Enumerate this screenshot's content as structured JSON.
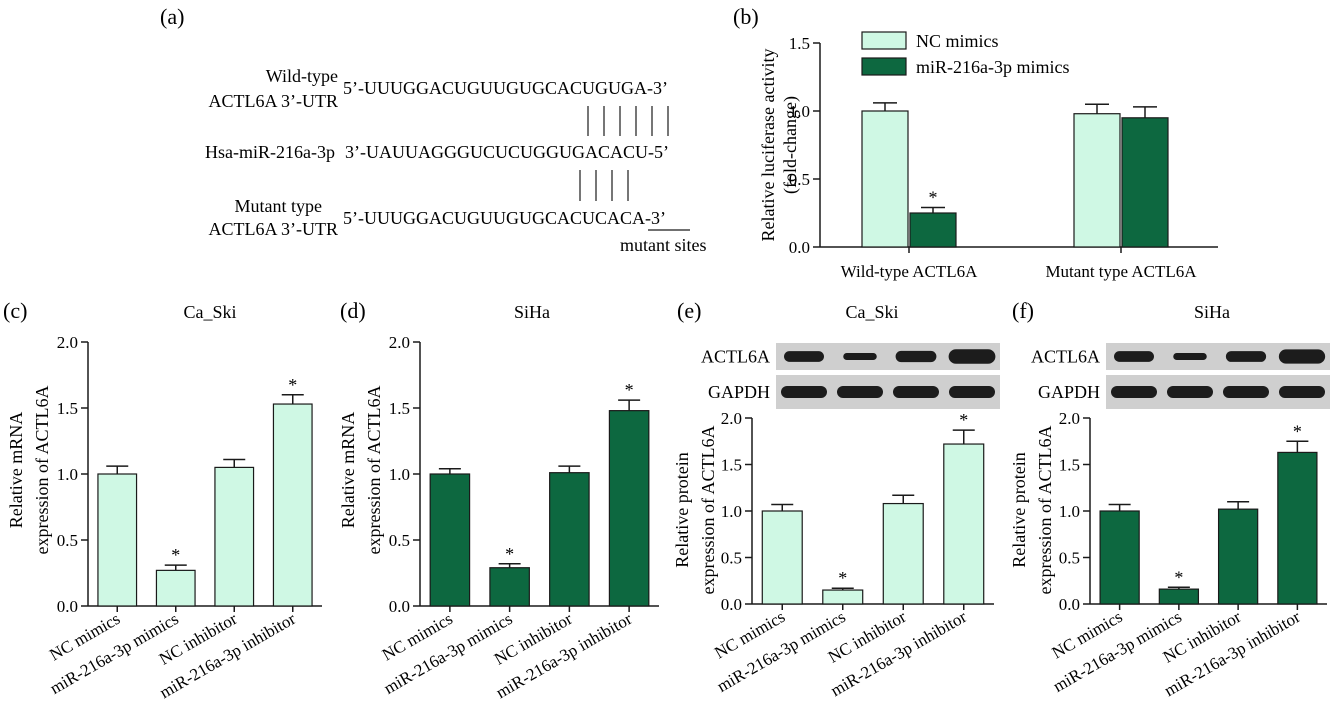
{
  "colors": {
    "light": "#cff8e4",
    "dark": "#0d6840",
    "stroke": "#1a1a1a",
    "blot_bg": "#cfcfcf",
    "blot_band": "#1c1c1c"
  },
  "panel_a": {
    "letter": "(a)",
    "wt_label_1": "Wild-type",
    "wt_label_2": "ACTL6A 3’-UTR",
    "wt_seq": "5’-UUUGGACUGUUGUGCACUGUGA-3’",
    "mir_label": "Hsa-miR-216a-3p",
    "mir_seq": "3’-UAUUAGGGUCUCUGGUGACACU-5’",
    "mut_label_1": "Mutant type",
    "mut_label_2": "ACTL6A 3’-UTR",
    "mut_seq": "5’-UUUGGACUGUUGUGCACUCACA-3’",
    "mutant_sites": "mutant sites"
  },
  "chart_data": [
    {
      "panel": "(b)",
      "type": "bar",
      "title": "",
      "ylabel": "Relative luciferase activity (fold-change)",
      "ylabel_lines": [
        "Relative luciferase activity",
        "(fold-change)"
      ],
      "ylim": [
        0,
        1.5
      ],
      "yticks": [
        "0.0",
        "0.5",
        "1.0",
        "1.5"
      ],
      "categories": [
        "Wild-type ACTL6A",
        "Mutant type ACTL6A"
      ],
      "series": [
        {
          "name": "NC mimics",
          "values": [
            1.0,
            0.98
          ],
          "errors": [
            0.06,
            0.07
          ],
          "sig": [
            false,
            false
          ]
        },
        {
          "name": "miR-216a-3p mimics",
          "values": [
            0.25,
            0.95
          ],
          "errors": [
            0.04,
            0.08
          ],
          "sig": [
            true,
            false
          ]
        }
      ],
      "legend": "top-right",
      "sig_mark": "*"
    },
    {
      "panel": "(c)",
      "type": "bar",
      "title": "Ca_Ski",
      "ylabel": "Relative mRNA expression of ACTL6A",
      "ylabel_lines": [
        "Relative mRNA",
        "expression of ACTL6A"
      ],
      "ylim": [
        0,
        2.0
      ],
      "yticks": [
        "0.0",
        "0.5",
        "1.0",
        "1.5",
        "2.0"
      ],
      "categories": [
        "NC mimics",
        "miR-216a-3p mimics",
        "NC inhibitor",
        "miR-216a-3p inhibitor"
      ],
      "values": [
        1.0,
        0.27,
        1.05,
        1.53
      ],
      "errors": [
        0.06,
        0.04,
        0.06,
        0.07
      ],
      "sig": [
        false,
        true,
        false,
        true
      ],
      "sig_mark": "*",
      "fill": "light"
    },
    {
      "panel": "(d)",
      "type": "bar",
      "title": "SiHa",
      "ylabel": "Relative mRNA expression of ACTL6A",
      "ylabel_lines": [
        "Relative mRNA",
        "expression of ACTL6A"
      ],
      "ylim": [
        0,
        2.0
      ],
      "yticks": [
        "0.0",
        "0.5",
        "1.0",
        "1.5",
        "2.0"
      ],
      "categories": [
        "NC mimics",
        "miR-216a-3p mimics",
        "NC inhibitor",
        "miR-216a-3p inhibitor"
      ],
      "values": [
        1.0,
        0.29,
        1.01,
        1.48
      ],
      "errors": [
        0.04,
        0.03,
        0.05,
        0.08
      ],
      "sig": [
        false,
        true,
        false,
        true
      ],
      "sig_mark": "*",
      "fill": "dark"
    },
    {
      "panel": "(e)",
      "type": "bar",
      "title": "Ca_Ski",
      "ylabel": "Relative protein expression of ACTL6A",
      "ylabel_lines": [
        "Relative protein",
        "expression of ACTL6A"
      ],
      "ylim": [
        0,
        2.0
      ],
      "yticks": [
        "0.0",
        "0.5",
        "1.0",
        "1.5",
        "2.0"
      ],
      "categories": [
        "NC mimics",
        "miR-216a-3p mimics",
        "NC inhibitor",
        "miR-216a-3p inhibitor"
      ],
      "values": [
        1.0,
        0.15,
        1.08,
        1.72
      ],
      "errors": [
        0.07,
        0.02,
        0.09,
        0.15
      ],
      "sig": [
        false,
        true,
        false,
        true
      ],
      "sig_mark": "*",
      "fill": "light",
      "blot_labels": [
        "ACTL6A",
        "GAPDH"
      ]
    },
    {
      "panel": "(f)",
      "type": "bar",
      "title": "SiHa",
      "ylabel": "Relative protein expression of ACTL6A",
      "ylabel_lines": [
        "Relative protein",
        "expression of ACTL6A"
      ],
      "ylim": [
        0,
        2.0
      ],
      "yticks": [
        "0.0",
        "0.5",
        "1.0",
        "1.5",
        "2.0"
      ],
      "categories": [
        "NC mimics",
        "miR-216a-3p mimics",
        "NC inhibitor",
        "miR-216a-3p inhibitor"
      ],
      "values": [
        1.0,
        0.16,
        1.02,
        1.63
      ],
      "errors": [
        0.07,
        0.02,
        0.08,
        0.12
      ],
      "sig": [
        false,
        true,
        false,
        true
      ],
      "sig_mark": "*",
      "fill": "dark",
      "blot_labels": [
        "ACTL6A",
        "GAPDH"
      ]
    }
  ]
}
